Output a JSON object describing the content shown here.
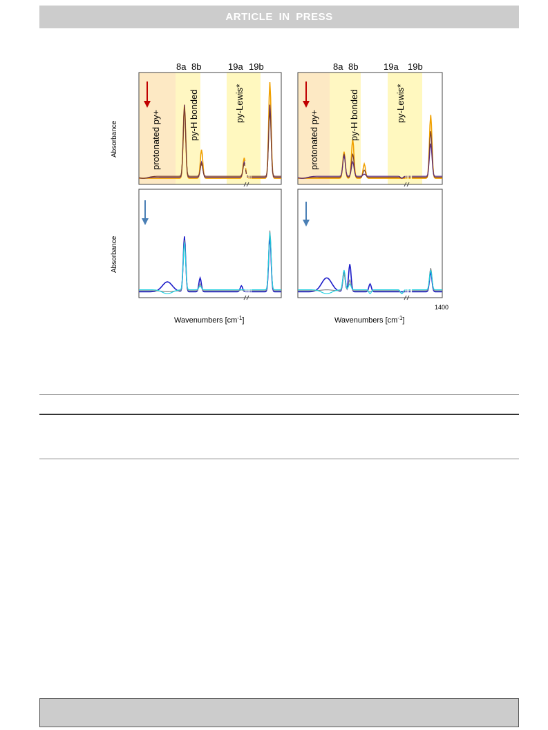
{
  "header": {
    "banner_text": "ARTICLE IN PRESS"
  },
  "figure": {
    "band_labels": [
      "8a",
      "8b",
      "19a",
      "19b"
    ],
    "region_labels": [
      "protonated py+",
      "py-H bonded",
      "py-Lewis*"
    ],
    "ylabel": "Absorbance",
    "xlabel": "Wavenumbers [cm",
    "xlabel_sup": "-1",
    "xlabel_end": "]",
    "tick_1400": "1400",
    "colors": {
      "protonated_region": "#fde9c4",
      "bonded_region": "#fff7c2",
      "lewis_region": "#fff8bf",
      "arrow_red": "#c00000",
      "arrow_blue": "#4a7fb5",
      "orange": "#f0a000",
      "purple": "#5a2a7a",
      "brown": "#7b3f2e",
      "blue": "#1a1ac8",
      "cyan": "#20d0e0",
      "gray": "#888888"
    }
  },
  "chart_data": [
    {
      "type": "line",
      "panel": "top-left",
      "ylabel": "Absorbance",
      "annotations": [
        "8a",
        "8b",
        "19a",
        "19b",
        "protonated py+",
        "py-H bonded",
        "py-Lewis*"
      ],
      "series": [
        {
          "peaks": [
            [
              0.03,
              0.06
            ],
            [
              0.32,
              0.78
            ],
            [
              0.44,
              0.34
            ],
            [
              0.74,
              0.26
            ],
            [
              0.92,
              1.0
            ]
          ]
        },
        {
          "peaks": [
            [
              0.03,
              0.06
            ],
            [
              0.32,
              0.78
            ],
            [
              0.44,
              0.22
            ],
            [
              0.74,
              0.22
            ],
            [
              0.92,
              0.78
            ]
          ]
        },
        {
          "peaks": [
            [
              0.03,
              0.06
            ],
            [
              0.32,
              0.76
            ],
            [
              0.44,
              0.2
            ],
            [
              0.74,
              0.2
            ],
            [
              0.92,
              0.72
            ]
          ]
        }
      ]
    },
    {
      "type": "line",
      "panel": "top-right",
      "annotations": [
        "8a",
        "8b",
        "19a",
        "19b",
        "protonated py+",
        "py-H bonded",
        "py-Lewis*"
      ],
      "series": [
        {
          "peaks": [
            [
              0.03,
              0.06
            ],
            [
              0.32,
              0.32
            ],
            [
              0.38,
              0.44
            ],
            [
              0.46,
              0.2
            ],
            [
              0.72,
              0.06
            ],
            [
              0.92,
              0.68
            ]
          ]
        },
        {
          "peaks": [
            [
              0.03,
              0.06
            ],
            [
              0.32,
              0.3
            ],
            [
              0.38,
              0.3
            ],
            [
              0.46,
              0.14
            ],
            [
              0.72,
              0.06
            ],
            [
              0.92,
              0.52
            ]
          ]
        },
        {
          "peaks": [
            [
              0.03,
              0.06
            ],
            [
              0.32,
              0.28
            ],
            [
              0.38,
              0.22
            ],
            [
              0.46,
              0.1
            ],
            [
              0.72,
              0.06
            ],
            [
              0.92,
              0.4
            ]
          ]
        }
      ]
    },
    {
      "type": "line",
      "panel": "bottom-left",
      "ylabel": "Absorbance",
      "xlabel": "Wavenumbers [cm-1]",
      "series": [
        {
          "peaks": [
            [
              0.2,
              0.16
            ],
            [
              0.32,
              0.62
            ],
            [
              0.43,
              0.2
            ],
            [
              0.72,
              0.12
            ],
            [
              0.92,
              0.62
            ]
          ]
        },
        {
          "peaks": [
            [
              0.2,
              0.06
            ],
            [
              0.32,
              0.58
            ],
            [
              0.43,
              0.14
            ],
            [
              0.72,
              0.08
            ],
            [
              0.92,
              0.68
            ]
          ]
        },
        {
          "peaks": [
            [
              0.2,
              0.04
            ],
            [
              0.32,
              0.56
            ],
            [
              0.43,
              0.12
            ],
            [
              0.72,
              0.08
            ],
            [
              0.92,
              0.66
            ]
          ]
        }
      ]
    },
    {
      "type": "line",
      "panel": "bottom-right",
      "xlabel": "Wavenumbers [cm-1]",
      "series": [
        {
          "peaks": [
            [
              0.2,
              0.2
            ],
            [
              0.32,
              0.26
            ],
            [
              0.36,
              0.34
            ],
            [
              0.5,
              0.14
            ],
            [
              0.72,
              0.06
            ],
            [
              0.92,
              0.26
            ]
          ]
        },
        {
          "peaks": [
            [
              0.2,
              0.08
            ],
            [
              0.32,
              0.24
            ],
            [
              0.36,
              0.18
            ],
            [
              0.5,
              0.06
            ],
            [
              0.72,
              0.04
            ],
            [
              0.92,
              0.3
            ]
          ]
        },
        {
          "peaks": [
            [
              0.2,
              0.04
            ],
            [
              0.32,
              0.28
            ],
            [
              0.36,
              0.14
            ],
            [
              0.5,
              0.04
            ],
            [
              0.72,
              0.04
            ],
            [
              0.92,
              0.28
            ]
          ]
        }
      ]
    }
  ]
}
